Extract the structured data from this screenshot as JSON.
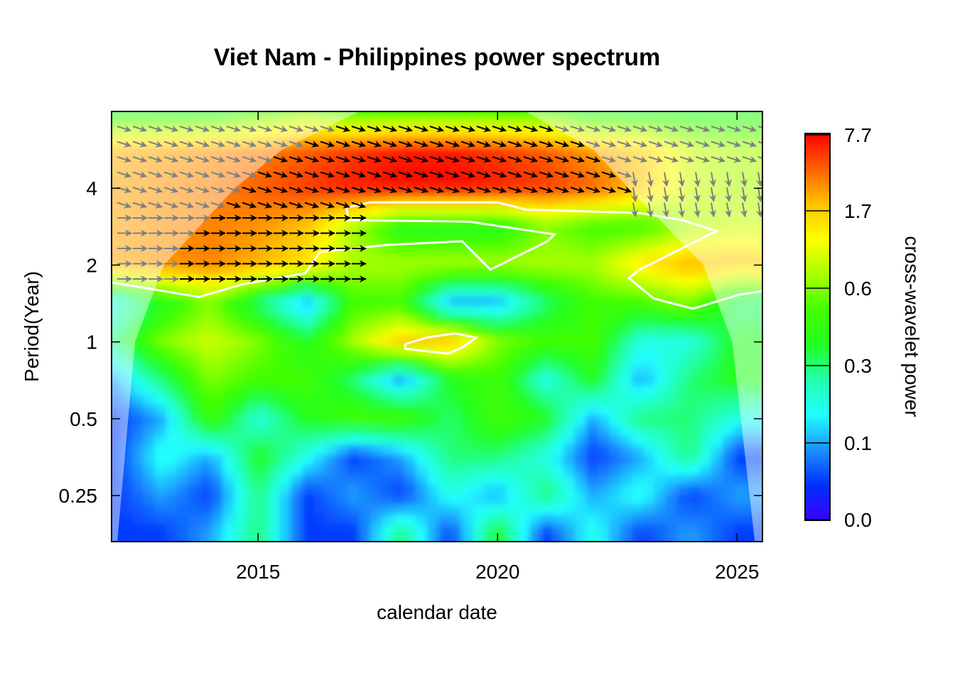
{
  "chart_data": {
    "type": "heatmap",
    "title": "Viet Nam - Philippines power spectrum",
    "xlabel": "calendar date",
    "ylabel": "Period(Year)",
    "colorbar_label": "cross-wavelet power",
    "xlim": [
      2011.94,
      2025.53
    ],
    "ylim": [
      0.165,
      8
    ],
    "y_scale": "log2",
    "x_ticks": [
      2015,
      2020,
      2025
    ],
    "x_tick_labels": [
      "2015",
      "2020",
      "2025"
    ],
    "y_ticks": [
      4,
      2,
      1,
      0.5,
      0.25
    ],
    "y_tick_labels": [
      "4",
      "2",
      "1",
      "0.5",
      "0.25"
    ],
    "colorbar_ticks": [
      7.7,
      1.7,
      0.6,
      0.3,
      0.1,
      0.0
    ],
    "colorbar_tick_labels": [
      "7.7",
      "1.7",
      "0.6",
      "0.3",
      "0.1",
      "0.0"
    ],
    "colorbar_colors": [
      "#3a00ff",
      "#0030ff",
      "#1a90ff",
      "#22ffff",
      "#22ffaa",
      "#22ff22",
      "#44ff00",
      "#aaff00",
      "#ffff00",
      "#ffc000",
      "#ff6000",
      "#ff0000"
    ],
    "grid_years": [
      2012,
      2013,
      2014,
      2015,
      2016,
      2017,
      2018,
      2019,
      2020,
      2021,
      2022,
      2023,
      2024,
      2025
    ],
    "grid_periods": [
      8,
      5.66,
      4,
      2.83,
      2,
      1.41,
      1,
      0.707,
      0.5,
      0.354,
      0.25,
      0.177
    ],
    "power": [
      [
        0.4,
        0.4,
        0.4,
        0.5,
        0.6,
        0.5,
        0.5,
        0.5,
        0.5,
        0.5,
        0.4,
        0.4,
        0.4,
        0.4
      ],
      [
        2.5,
        3,
        3.5,
        4,
        5,
        6,
        7,
        7,
        6,
        5,
        3,
        1.7,
        1,
        0.8
      ],
      [
        3,
        3.5,
        4,
        5,
        6,
        7,
        7.5,
        7.5,
        7,
        6,
        5,
        2,
        1,
        0.8
      ],
      [
        3,
        3.5,
        4,
        3.5,
        2,
        0.8,
        0.4,
        0.4,
        0.4,
        0.6,
        0.5,
        0.5,
        0.8,
        1
      ],
      [
        3,
        3.5,
        4,
        2.5,
        1.5,
        0.8,
        0.8,
        0.8,
        0.8,
        0.8,
        0.8,
        1.5,
        2.5,
        2
      ],
      [
        0.2,
        0.4,
        0.6,
        0.3,
        0.1,
        0.5,
        0.5,
        0.1,
        0.1,
        0.3,
        0.5,
        0.5,
        0.6,
        0.3
      ],
      [
        0.3,
        0.6,
        1,
        0.6,
        0.4,
        0.8,
        1.7,
        2,
        0.6,
        0.5,
        0.5,
        0.2,
        0.2,
        0.4
      ],
      [
        0.1,
        0.3,
        0.6,
        0.5,
        0.5,
        0.3,
        0.1,
        0.4,
        0.5,
        0.2,
        0.4,
        0.1,
        0.3,
        0.4
      ],
      [
        0.05,
        0.1,
        0.5,
        0.2,
        0.4,
        0.5,
        0.5,
        0.3,
        0.5,
        0.4,
        0.1,
        0.3,
        0.3,
        0.2
      ],
      [
        0.05,
        0.2,
        0.1,
        0.4,
        0.2,
        0.05,
        0.1,
        0.3,
        0.3,
        0.2,
        0.05,
        0.1,
        0.3,
        0.05
      ],
      [
        0.05,
        0.1,
        0.05,
        0.3,
        0.05,
        0.1,
        0.05,
        0.2,
        0.1,
        0.3,
        0.1,
        0.2,
        0.05,
        0.1
      ],
      [
        0.05,
        0.05,
        0.1,
        0.3,
        0.05,
        0.05,
        0.3,
        0.05,
        0.4,
        0.05,
        0.2,
        0.05,
        0.1,
        0.05
      ]
    ],
    "cone_of_influence": [
      [
        2012.06,
        0.165
      ],
      [
        2012.43,
        1
      ],
      [
        2013.03,
        2
      ],
      [
        2014.51,
        4
      ],
      [
        2015.5,
        5.66
      ],
      [
        2017.26,
        8
      ],
      [
        2020.45,
        8
      ],
      [
        2022.0,
        5.66
      ],
      [
        2022.74,
        4
      ],
      [
        2024.3,
        2
      ],
      [
        2024.9,
        1
      ],
      [
        2025.37,
        0.165
      ]
    ],
    "significance_contours": [
      [
        [
          2011.94,
          1.71
        ],
        [
          2013.77,
          1.5
        ],
        [
          2014.66,
          1.68
        ],
        [
          2015.99,
          1.86
        ],
        [
          2016.29,
          2.25
        ],
        [
          2017.7,
          2.4
        ],
        [
          2019.26,
          2.48
        ],
        [
          2019.85,
          1.92
        ],
        [
          2021.04,
          2.48
        ],
        [
          2021.19,
          2.64
        ],
        [
          2019.41,
          2.96
        ],
        [
          2016.88,
          3.0
        ],
        [
          2016.85,
          3.36
        ],
        [
          2017.33,
          3.52
        ],
        [
          2020.0,
          3.52
        ],
        [
          2020.59,
          3.3
        ],
        [
          2022.97,
          3.2
        ],
        [
          2023.86,
          3.0
        ],
        [
          2024.57,
          2.72
        ],
        [
          2022.97,
          1.92
        ],
        [
          2022.74,
          1.78
        ],
        [
          2023.26,
          1.48
        ],
        [
          2024.08,
          1.35
        ],
        [
          2025.04,
          1.53
        ],
        [
          2025.53,
          1.58
        ]
      ],
      [
        [
          2018.07,
          0.98
        ],
        [
          2018.52,
          1.04
        ],
        [
          2019.11,
          1.08
        ],
        [
          2019.55,
          1.04
        ],
        [
          2019.26,
          0.95
        ],
        [
          2018.96,
          0.9
        ],
        [
          2018.07,
          0.94
        ],
        [
          2018.07,
          0.98
        ]
      ]
    ]
  }
}
